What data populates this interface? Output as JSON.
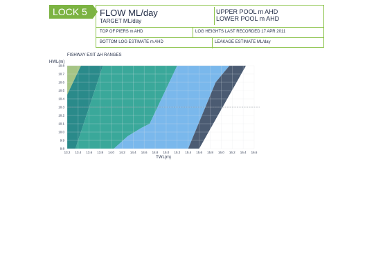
{
  "header": {
    "lock_label": "LOCK 5",
    "flow_title": "FLOW ML/day",
    "target": "TARGET ML/day",
    "upper_pool": "UPPER POOL m AHD",
    "lower_pool": "LOWER POOL m AHD",
    "top_of_piers": "TOP OF PIERS m AHD",
    "log_heights": "LOG HEIGHTS LAST RECORDED 17 APR 2011",
    "bottom_log": "BOTTOM LOG ESTIMATE m AHD",
    "leakage": "LEAKAGE ESTIMATE ML/day"
  },
  "colors": {
    "accent": "#7cb342",
    "band_light_green": "#a5c485",
    "band_dark_teal": "#2a8a8a",
    "band_teal": "#3aa89a",
    "band_blue": "#7ab8ec",
    "band_slate": "#4b5b72"
  },
  "chart_data": {
    "type": "area",
    "title": "FISHWAY EXIT ΔH RANGES",
    "xlabel": "TWL(m)",
    "ylabel": "HWL(m)",
    "xlim": [
      13.2,
      16.6
    ],
    "ylim": [
      9.8,
      10.8
    ],
    "x_ticks": [
      "13.2",
      "13.4",
      "13.6",
      "13.8",
      "14.0",
      "14.2",
      "14.4",
      "14.6",
      "14.8",
      "15.0",
      "15.2",
      "15.4",
      "15.6",
      "15.8",
      "16.0",
      "16.2",
      "16.4",
      "16.6"
    ],
    "y_ticks": [
      "9.8",
      "9.9",
      "10.0",
      "10.1",
      "10.2",
      "10.3",
      "10.4",
      "10.5",
      "10.6",
      "10.7",
      "10.8"
    ],
    "grid": true,
    "reference_line_y": 10.3,
    "regions": [
      {
        "color_key": "band_light_green",
        "points": [
          [
            13.2,
            10.8
          ],
          [
            13.45,
            10.8
          ],
          [
            13.2,
            10.45
          ]
        ]
      },
      {
        "color_key": "band_dark_teal",
        "points": [
          [
            13.45,
            10.8
          ],
          [
            13.85,
            10.8
          ],
          [
            13.35,
            9.8
          ],
          [
            13.2,
            9.8
          ],
          [
            13.2,
            10.45
          ]
        ]
      },
      {
        "color_key": "band_teal",
        "points": [
          [
            13.85,
            10.8
          ],
          [
            15.2,
            10.8
          ],
          [
            14.7,
            10.1
          ],
          [
            14.55,
            10.05
          ],
          [
            14.3,
            9.95
          ],
          [
            14.05,
            9.8
          ],
          [
            13.35,
            9.8
          ]
        ]
      },
      {
        "color_key": "band_blue",
        "points": [
          [
            15.2,
            10.8
          ],
          [
            16.15,
            10.8
          ],
          [
            15.9,
            10.6
          ],
          [
            15.4,
            9.8
          ],
          [
            14.05,
            9.8
          ],
          [
            14.3,
            9.95
          ],
          [
            14.55,
            10.05
          ],
          [
            14.7,
            10.1
          ]
        ]
      },
      {
        "color_key": "band_slate",
        "points": [
          [
            16.15,
            10.8
          ],
          [
            16.45,
            10.8
          ],
          [
            15.6,
            9.8
          ],
          [
            15.4,
            9.8
          ],
          [
            15.9,
            10.6
          ]
        ]
      }
    ]
  }
}
